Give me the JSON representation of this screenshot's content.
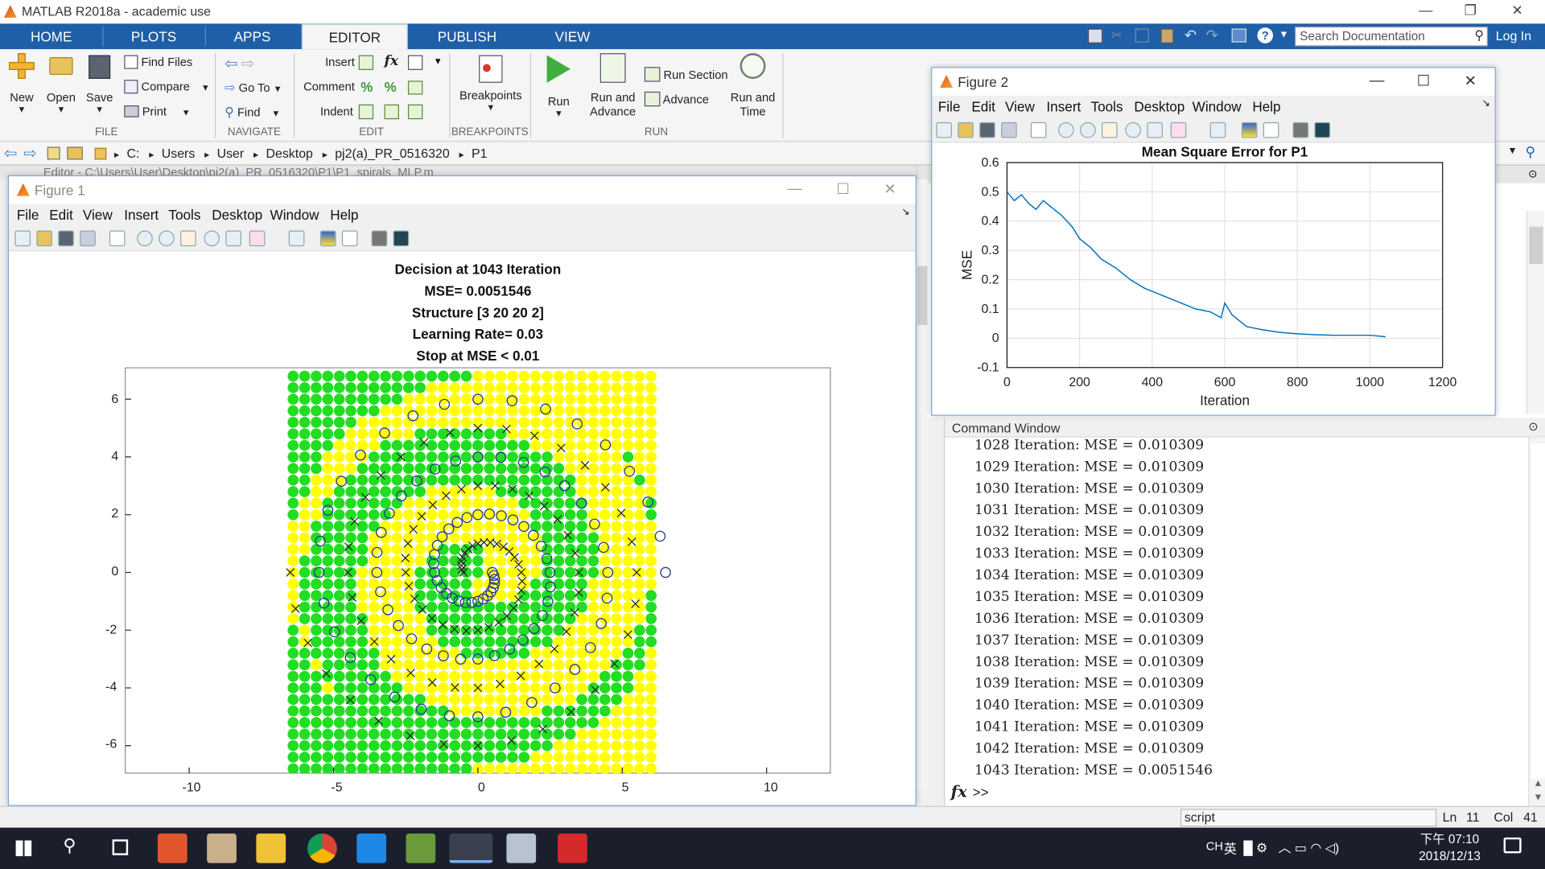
{
  "window": {
    "title": "MATLAB R2018a - academic use"
  },
  "tabs": [
    {
      "label": "HOME"
    },
    {
      "label": "PLOTS"
    },
    {
      "label": "APPS"
    },
    {
      "label": "EDITOR",
      "active": true
    },
    {
      "label": "PUBLISH"
    },
    {
      "label": "VIEW"
    }
  ],
  "search": {
    "placeholder": "Search Documentation"
  },
  "login_label": "Log In",
  "ribbon": {
    "file": {
      "group": "FILE",
      "new": "New",
      "open": "Open",
      "save": "Save",
      "find_files": "Find Files",
      "compare": "Compare",
      "print": "Print"
    },
    "navigate": {
      "group": "NAVIGATE",
      "goto": "Go To",
      "find": "Find"
    },
    "edit": {
      "group": "EDIT",
      "insert": "Insert",
      "comment": "Comment",
      "indent": "Indent",
      "fx": "fx"
    },
    "breakpoints": {
      "group": "BREAKPOINTS",
      "label": "Breakpoints"
    },
    "run": {
      "group": "RUN",
      "run": "Run",
      "run_advance_1": "Run and",
      "run_advance_2": "Advance",
      "run_section": "Run Section",
      "advance": "Advance",
      "run_time_1": "Run and",
      "run_time_2": "Time"
    }
  },
  "address": {
    "parts": [
      "C:",
      "Users",
      "User",
      "Desktop",
      "pj2(a)_PR_0516320",
      "P1"
    ],
    "sep": "▸"
  },
  "editor_tab": "Editor - C:\\Users\\User\\Desktop\\pj2(a)_PR_0516320\\P1\\P1_spirals_MLP.m",
  "figure1": {
    "title": "Figure 1",
    "menu": [
      "File",
      "Edit",
      "View",
      "Insert",
      "Tools",
      "Desktop",
      "Window",
      "Help"
    ],
    "plot_title": [
      "Decision at 1043 Iteration",
      "MSE= 0.0051546",
      "Structure [3 20 20 2]",
      "Learning Rate= 0.03",
      "Stop at MSE < 0.01"
    ],
    "xticks": [
      "-10",
      "-5",
      "0",
      "5",
      "10"
    ],
    "yticks": [
      "6",
      "4",
      "2",
      "0",
      "-2",
      "-4",
      "-6"
    ],
    "colors": {
      "class_a": "#22dd22",
      "class_b": "#ffff00",
      "marker": "#2a3a8a"
    }
  },
  "figure2": {
    "title": "Figure 2",
    "menu": [
      "File",
      "Edit",
      "View",
      "Insert",
      "Tools",
      "Desktop",
      "Window",
      "Help"
    ]
  },
  "chart_data": {
    "type": "line",
    "title": "Mean Square Error for P1",
    "xlabel": "Iteration",
    "ylabel": "MSE",
    "xlim": [
      0,
      1200
    ],
    "ylim": [
      -0.1,
      0.6
    ],
    "xticks": [
      "0",
      "200",
      "400",
      "600",
      "800",
      "1000",
      "1200"
    ],
    "yticks": [
      "0.6",
      "0.5",
      "0.4",
      "0.3",
      "0.2",
      "0.1",
      "0",
      "-0.1"
    ],
    "grid": true,
    "series": [
      {
        "color": "#0072bd",
        "x": [
          0,
          20,
          40,
          60,
          80,
          100,
          120,
          150,
          180,
          200,
          230,
          260,
          300,
          340,
          380,
          400,
          440,
          480,
          520,
          560,
          590,
          600,
          610,
          620,
          640,
          660,
          700,
          750,
          800,
          850,
          900,
          950,
          1000,
          1043
        ],
        "y": [
          0.5,
          0.47,
          0.49,
          0.46,
          0.44,
          0.47,
          0.45,
          0.42,
          0.38,
          0.34,
          0.31,
          0.27,
          0.24,
          0.2,
          0.17,
          0.16,
          0.14,
          0.12,
          0.1,
          0.09,
          0.07,
          0.12,
          0.1,
          0.08,
          0.06,
          0.04,
          0.03,
          0.02,
          0.015,
          0.012,
          0.01,
          0.01,
          0.01,
          0.005
        ]
      }
    ]
  },
  "command_window": {
    "title": "Command Window",
    "lines": [
      "1028 Iteration: MSE = 0.010309",
      "1029 Iteration: MSE = 0.010309",
      "1030 Iteration: MSE = 0.010309",
      "1031 Iteration: MSE = 0.010309",
      "1032 Iteration: MSE = 0.010309",
      "1033 Iteration: MSE = 0.010309",
      "1034 Iteration: MSE = 0.010309",
      "1035 Iteration: MSE = 0.010309",
      "1036 Iteration: MSE = 0.010309",
      "1037 Iteration: MSE = 0.010309",
      "1038 Iteration: MSE = 0.010309",
      "1039 Iteration: MSE = 0.010309",
      "1040 Iteration: MSE = 0.010309",
      "1041 Iteration: MSE = 0.010309",
      "1042 Iteration: MSE = 0.010309",
      "1043 Iteration: MSE = 0.0051546"
    ],
    "prompt": ">>"
  },
  "status": {
    "mode": "script",
    "ln_label": "Ln",
    "ln": "11",
    "col_label": "Col",
    "col": "41"
  },
  "taskbar": {
    "ime": "CH",
    "ime2": "英",
    "time": "下午 07:10",
    "date": "2018/12/13"
  }
}
